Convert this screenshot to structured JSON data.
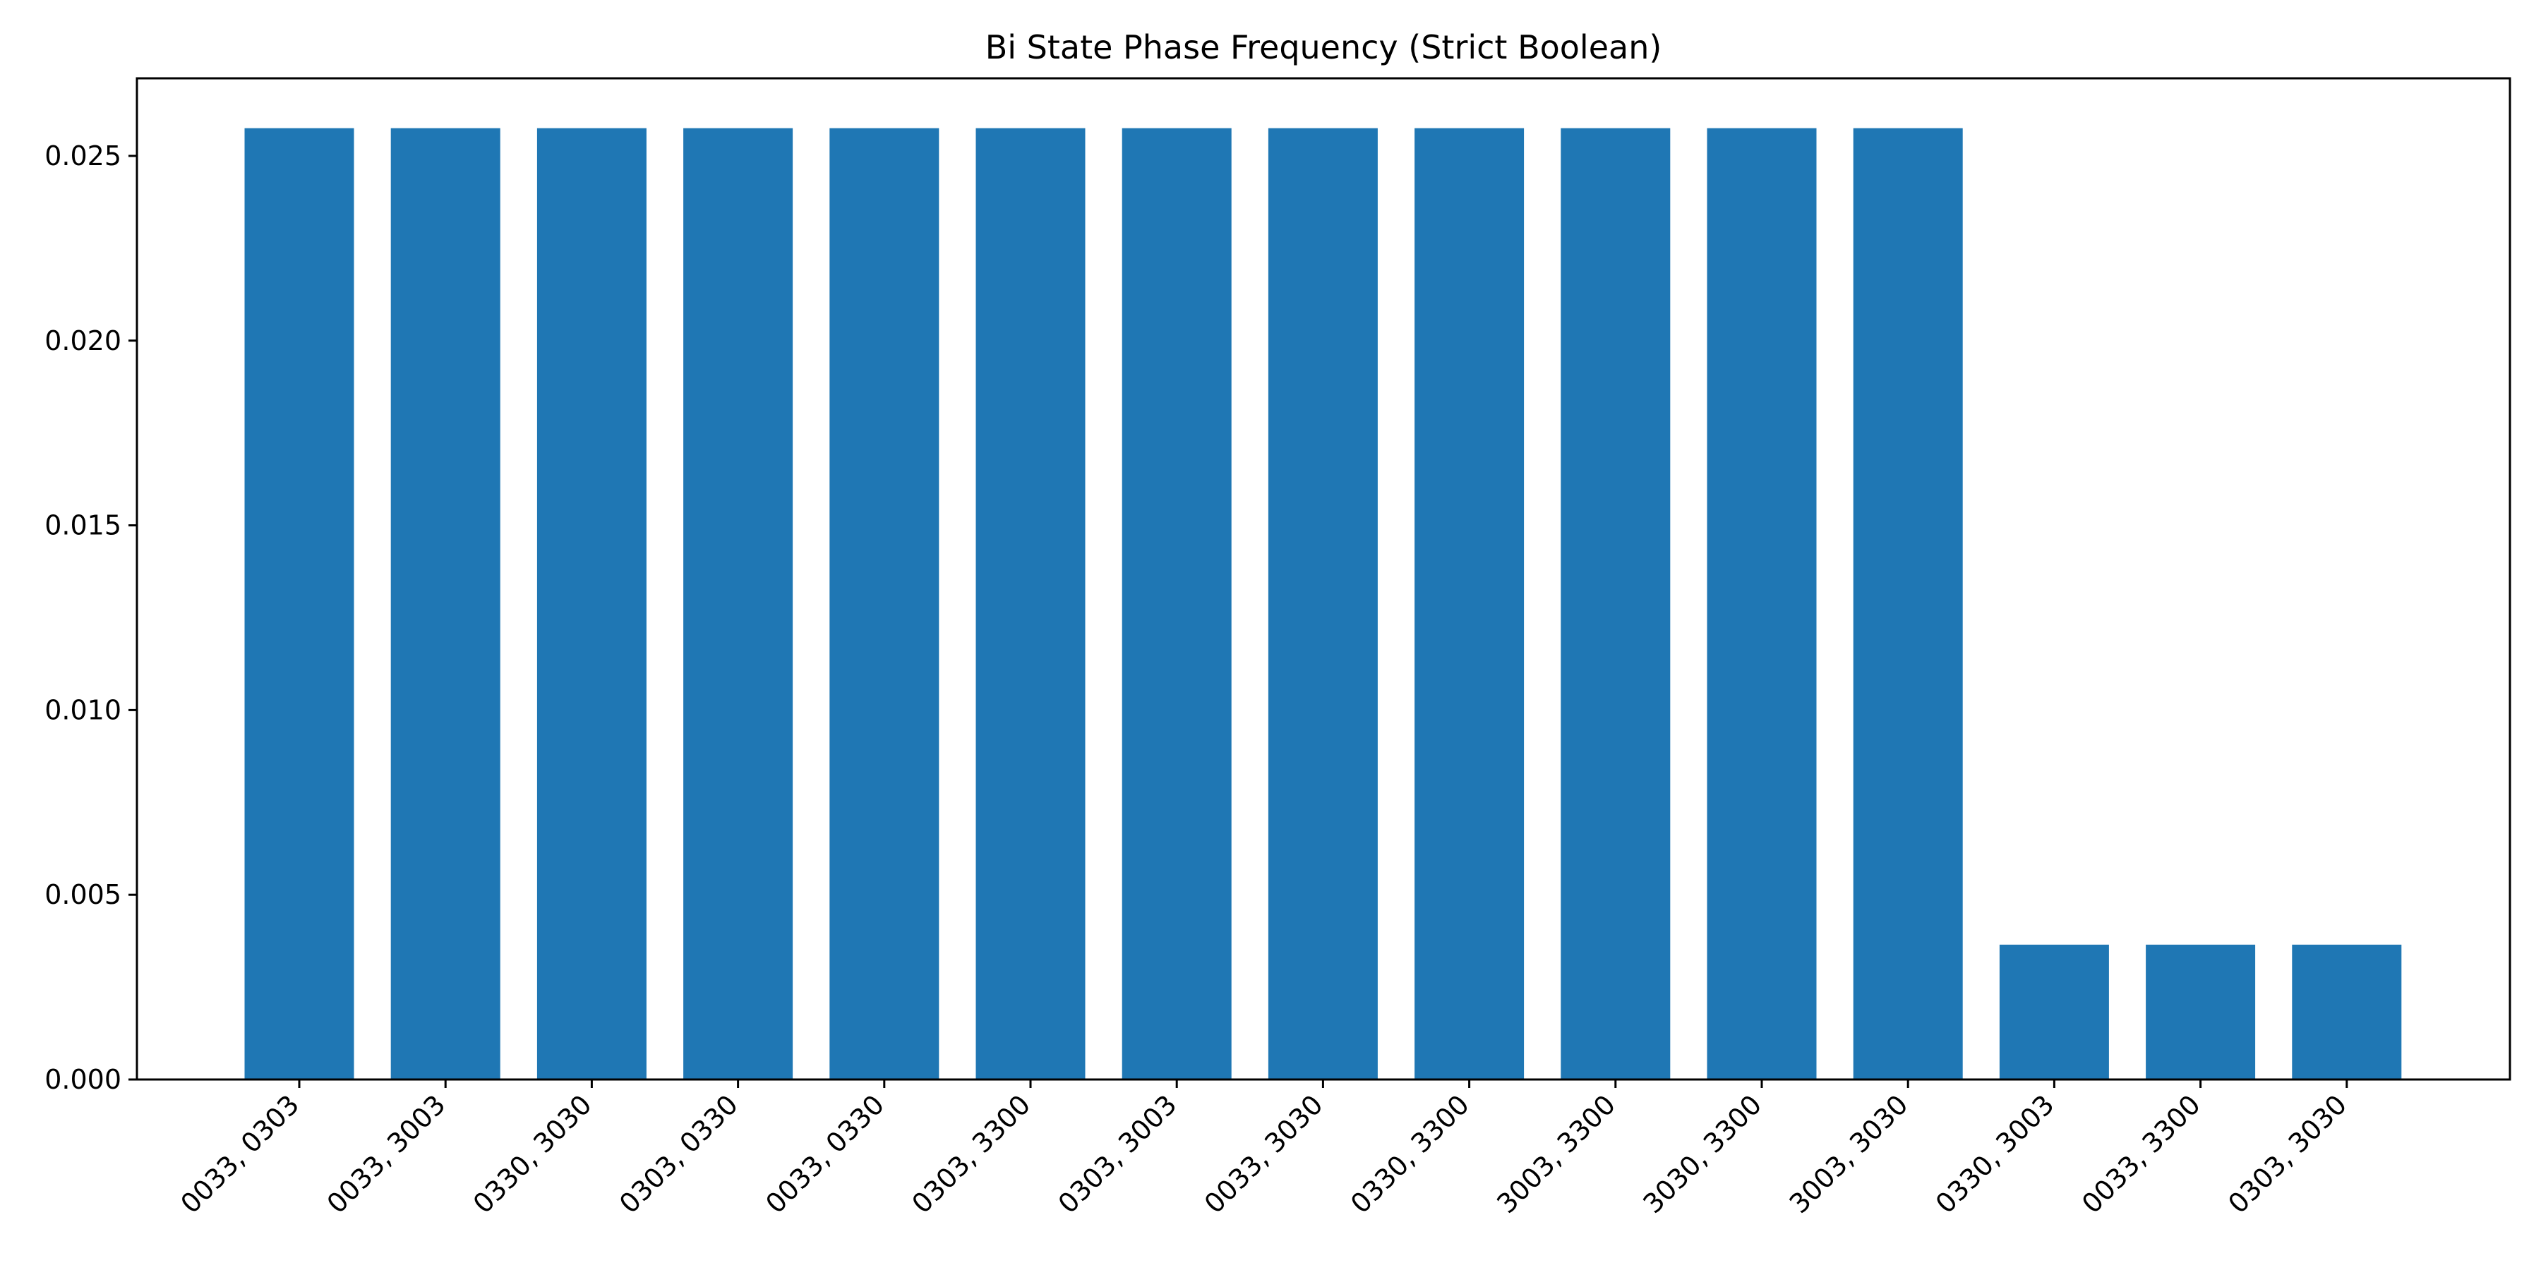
{
  "chart_data": {
    "type": "bar",
    "title": "Bi State Phase Frequency (Strict Boolean)",
    "xlabel": "",
    "ylabel": "",
    "categories": [
      "0033, 0303",
      "0033, 3003",
      "0330, 3030",
      "0303, 0330",
      "0033, 0330",
      "0303, 3300",
      "0303, 3003",
      "0033, 3030",
      "0330, 3300",
      "3003, 3300",
      "3030, 3300",
      "3003, 3030",
      "0330, 3003",
      "0033, 3300",
      "0303, 3030"
    ],
    "values": [
      0.02575,
      0.02575,
      0.02575,
      0.02575,
      0.02575,
      0.02575,
      0.02575,
      0.02575,
      0.02575,
      0.02575,
      0.02575,
      0.02575,
      0.00365,
      0.00365,
      0.00365
    ],
    "ylim": [
      0,
      0.0271
    ],
    "yticks": [
      "0.000",
      "0.005",
      "0.010",
      "0.015",
      "0.020",
      "0.025"
    ],
    "grid": false,
    "legend": "none",
    "bar_color": "#1f77b4"
  }
}
